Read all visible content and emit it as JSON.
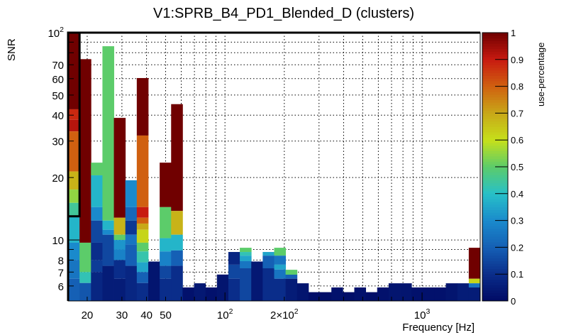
{
  "chart_data": {
    "type": "heatmap",
    "title": "V1:SPRB_B4_PD1_Blended_D (clusters)",
    "xlabel": "Frequency [Hz]",
    "ylabel": "SNR",
    "zlabel": "use-percentage",
    "xscale": "log",
    "yscale": "log",
    "xlim": [
      16,
      1972
    ],
    "ylim": [
      5.08,
      100
    ],
    "zlim": [
      0,
      1
    ],
    "grid": true,
    "nbins_x": 36,
    "x_tick_labels": [
      {
        "value": 20,
        "label": "20"
      },
      {
        "value": 30,
        "label": "30"
      },
      {
        "value": 40,
        "label": "40"
      },
      {
        "value": 50,
        "label": "50"
      },
      {
        "value": 100,
        "label": "10^2"
      },
      {
        "value": 200,
        "label": "2×10^2"
      },
      {
        "value": 1000,
        "label": "10^3"
      }
    ],
    "y_tick_labels": [
      {
        "value": 6,
        "label": "6"
      },
      {
        "value": 7,
        "label": "7"
      },
      {
        "value": 8,
        "label": "8"
      },
      {
        "value": 10,
        "label": "10"
      },
      {
        "value": 20,
        "label": "20"
      },
      {
        "value": 30,
        "label": "30"
      },
      {
        "value": 40,
        "label": "40"
      },
      {
        "value": 50,
        "label": "50"
      },
      {
        "value": 60,
        "label": "60"
      },
      {
        "value": 70,
        "label": "70"
      },
      {
        "value": 100,
        "label": "10^2"
      }
    ],
    "z_tick_labels": [
      "0",
      "0.1",
      "0.2",
      "0.3",
      "0.4",
      "0.5",
      "0.6",
      "0.7",
      "0.8",
      "0.9",
      "1"
    ],
    "palette": [
      [
        0,
        "#000a64"
      ],
      [
        0.1,
        "#0a2d8a"
      ],
      [
        0.2,
        "#1560b5"
      ],
      [
        0.3,
        "#1a8acc"
      ],
      [
        0.4,
        "#27c0c8"
      ],
      [
        0.5,
        "#5ccc6a"
      ],
      [
        0.6,
        "#c6e01a"
      ],
      [
        0.7,
        "#c8a818"
      ],
      [
        0.8,
        "#d06010"
      ],
      [
        0.9,
        "#c81a10"
      ],
      [
        1,
        "#700000"
      ]
    ],
    "columns_note": "each column: list of [snr_top, use_percentage] segments from top down; each segment spans down to the next segment's top (last to ylim min)",
    "columns": [
      [
        [
          100,
          1
        ],
        [
          42.7,
          0.88
        ],
        [
          38,
          0.92
        ],
        [
          33.4,
          0.8
        ],
        [
          21.4,
          0.68
        ],
        [
          17.5,
          0.55
        ],
        [
          15.1,
          0.45
        ],
        [
          13,
          0.38
        ],
        [
          9.7,
          0.3
        ],
        [
          8,
          0.25
        ],
        [
          6.5,
          0.2
        ]
      ],
      [
        [
          74.5,
          1
        ],
        [
          9.7,
          0.5
        ],
        [
          7.0,
          0.42
        ],
        [
          6.2,
          0.18
        ]
      ],
      [
        [
          23.6,
          0.5
        ],
        [
          20.5,
          0.38
        ],
        [
          14.4,
          0.3
        ],
        [
          12.4,
          0.15
        ],
        [
          9.7,
          0.1
        ],
        [
          8,
          0.13
        ],
        [
          7,
          0.08
        ]
      ],
      [
        [
          86,
          0.5
        ],
        [
          12.4,
          0.38
        ],
        [
          11.2,
          0.3
        ],
        [
          10.6,
          0.15
        ],
        [
          7.5,
          0.05
        ]
      ],
      [
        [
          38.8,
          1
        ],
        [
          12.8,
          0.68
        ],
        [
          10.6,
          0.5
        ],
        [
          10,
          0.32
        ],
        [
          9,
          0.28
        ],
        [
          8,
          0.1
        ],
        [
          6.5,
          0.05
        ]
      ],
      [
        [
          19.4,
          0.3
        ],
        [
          14.4,
          0.22
        ],
        [
          12.4,
          0.12
        ],
        [
          10.6,
          0.25
        ],
        [
          9.5,
          0.2
        ],
        [
          7.5,
          0.08
        ]
      ],
      [
        [
          60.4,
          1
        ],
        [
          31.9,
          0.8
        ],
        [
          14.4,
          0.9
        ],
        [
          12.8,
          0.8
        ],
        [
          12,
          0.7
        ],
        [
          11.2,
          0.62
        ],
        [
          9.7,
          0.5
        ],
        [
          8.8,
          0.43
        ],
        [
          7.8,
          0.35
        ],
        [
          7,
          0.2
        ],
        [
          6.2,
          0.1
        ]
      ],
      [
        [
          7.87,
          0.03
        ]
      ],
      [
        [
          23.6,
          1
        ],
        [
          14.4,
          0.5
        ],
        [
          10.2,
          0.38
        ],
        [
          8.8,
          0.28
        ],
        [
          7.5,
          0.15
        ],
        [
          6.5,
          0.1
        ]
      ],
      [
        [
          45.2,
          1
        ],
        [
          13.8,
          0.68
        ],
        [
          10.6,
          0.38
        ],
        [
          8.9,
          0.2
        ],
        [
          7.5,
          0.1
        ]
      ],
      [
        [
          5.9,
          0.02
        ]
      ],
      [
        [
          6.18,
          0.04
        ]
      ],
      [
        [
          5.9,
          0.02
        ]
      ],
      [
        [
          6.81,
          0.03
        ]
      ],
      [
        [
          8.75,
          0.08
        ],
        [
          7.6,
          0.15
        ],
        [
          6.5,
          0.1
        ]
      ],
      [
        [
          9.17,
          0.5
        ],
        [
          8.75,
          0.42
        ],
        [
          8.4,
          0.35
        ],
        [
          7.9,
          0.25
        ],
        [
          7.3,
          0.15
        ]
      ],
      [
        [
          7.87,
          0.04
        ]
      ],
      [
        [
          8.75,
          0.35
        ],
        [
          8.4,
          0.2
        ],
        [
          7.3,
          0.1
        ]
      ],
      [
        [
          9.17,
          0.5
        ],
        [
          8.4,
          0.25
        ],
        [
          7.6,
          0.35
        ],
        [
          7.2,
          0.25
        ],
        [
          6.5,
          0.1
        ]
      ],
      [
        [
          7.18,
          0.5
        ],
        [
          6.8,
          0.2
        ],
        [
          6.5,
          0.05
        ]
      ],
      [
        [
          6.18,
          0.03
        ]
      ],
      [
        [
          5.6,
          0.01
        ]
      ],
      [
        [
          5.6,
          0.01
        ]
      ],
      [
        [
          5.9,
          0.02
        ]
      ],
      [
        [
          5.6,
          0.01
        ]
      ],
      [
        [
          5.9,
          0.02
        ]
      ],
      [
        [
          5.6,
          0.01
        ]
      ],
      [
        [
          5.9,
          0.02
        ]
      ],
      [
        [
          6.18,
          0.03
        ]
      ],
      [
        [
          6.18,
          0.03
        ]
      ],
      [
        [
          5.9,
          0.02
        ]
      ],
      [
        [
          5.9,
          0.02
        ]
      ],
      [
        [
          5.9,
          0.02
        ]
      ],
      [
        [
          6.18,
          0.03
        ]
      ],
      [
        [
          6.18,
          0.05
        ]
      ],
      [
        [
          9.17,
          1
        ],
        [
          6.5,
          0.62
        ],
        [
          6.18,
          0.25
        ],
        [
          5.9,
          0.05
        ]
      ]
    ]
  }
}
